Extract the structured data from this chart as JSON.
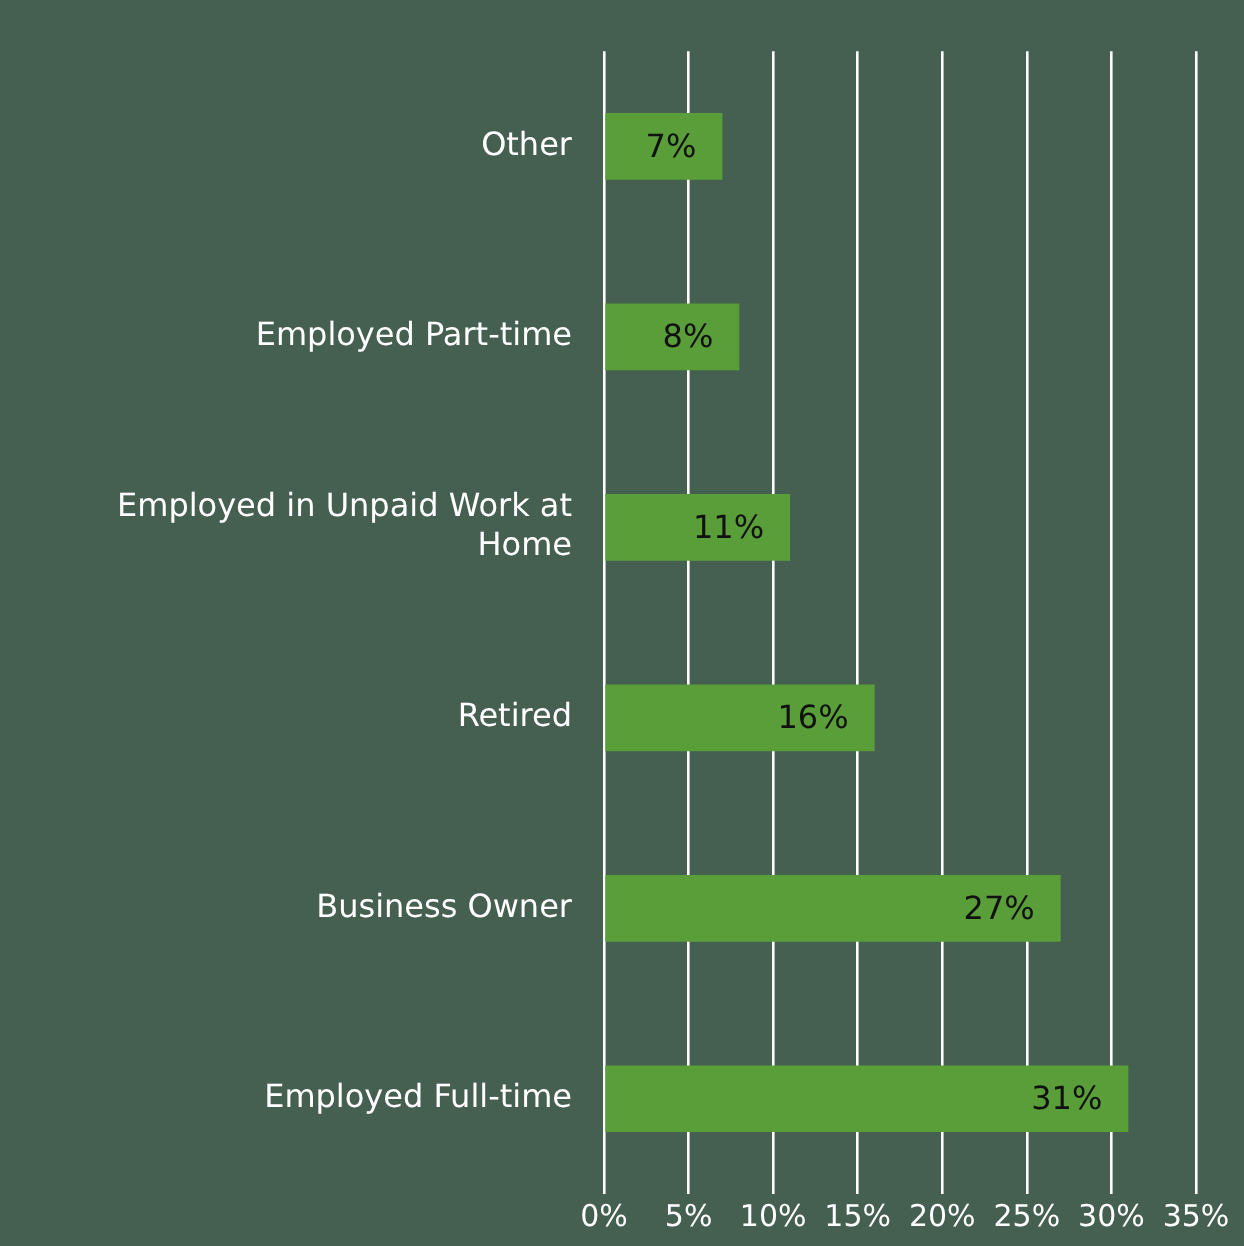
{
  "chart_data": {
    "type": "bar",
    "orientation": "horizontal",
    "categories": [
      "Other",
      "Employed Part-time",
      "Employed in Unpaid Work at Home",
      "Retired",
      "Business Owner",
      "Employed Full-time"
    ],
    "values": [
      7,
      8,
      11,
      16,
      27,
      31
    ],
    "value_labels": [
      "7%",
      "8%",
      "11%",
      "16%",
      "27%",
      "31%"
    ],
    "color": "#5a9e3a",
    "xlim": [
      0,
      35
    ],
    "xticks": [
      {
        "value": 0,
        "label": "0%"
      },
      {
        "value": 5,
        "label": "5%"
      },
      {
        "value": 10,
        "label": "10%"
      },
      {
        "value": 15,
        "label": "15%"
      },
      {
        "value": 20,
        "label": "20%"
      },
      {
        "value": 25,
        "label": "25%"
      },
      {
        "value": 30,
        "label": "30%"
      },
      {
        "value": 35,
        "label": "35%"
      }
    ],
    "grid": "x"
  }
}
